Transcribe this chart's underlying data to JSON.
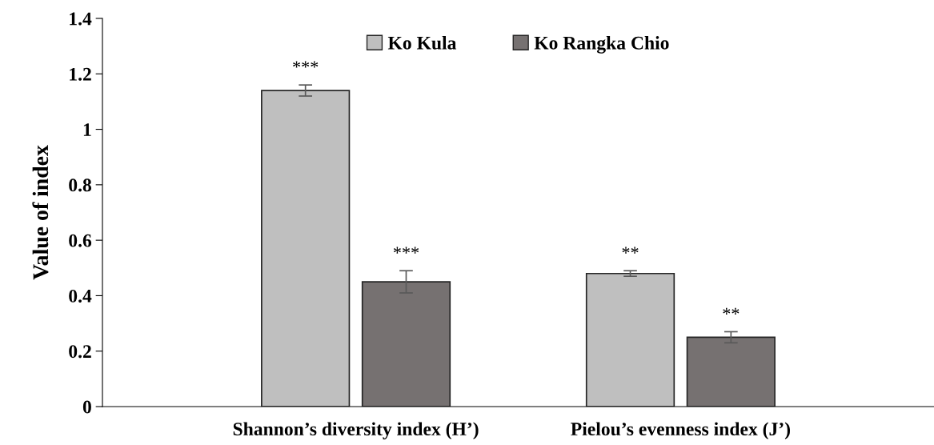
{
  "chart_data": {
    "type": "bar",
    "ylabel": "Value of index",
    "categories": [
      "Shannon’s diversity index (H’)",
      "Pielou’s evenness index (J’)"
    ],
    "series": [
      {
        "name": "Ko Kula",
        "color": "#bfbfbf",
        "values": [
          1.14,
          0.48
        ],
        "errors": [
          0.02,
          0.01
        ],
        "value_labels": [
          "***",
          "**"
        ]
      },
      {
        "name": "Ko Rangka Chio",
        "color": "#767171",
        "values": [
          0.45,
          0.25
        ],
        "errors": [
          0.04,
          0.02
        ],
        "value_labels": [
          "***",
          "**"
        ]
      }
    ],
    "ylim": [
      0,
      1.4
    ],
    "yticks": [
      0,
      0.2,
      0.4,
      0.6,
      0.8,
      1,
      1.2,
      1.4
    ],
    "grid": false,
    "legend": "top"
  }
}
